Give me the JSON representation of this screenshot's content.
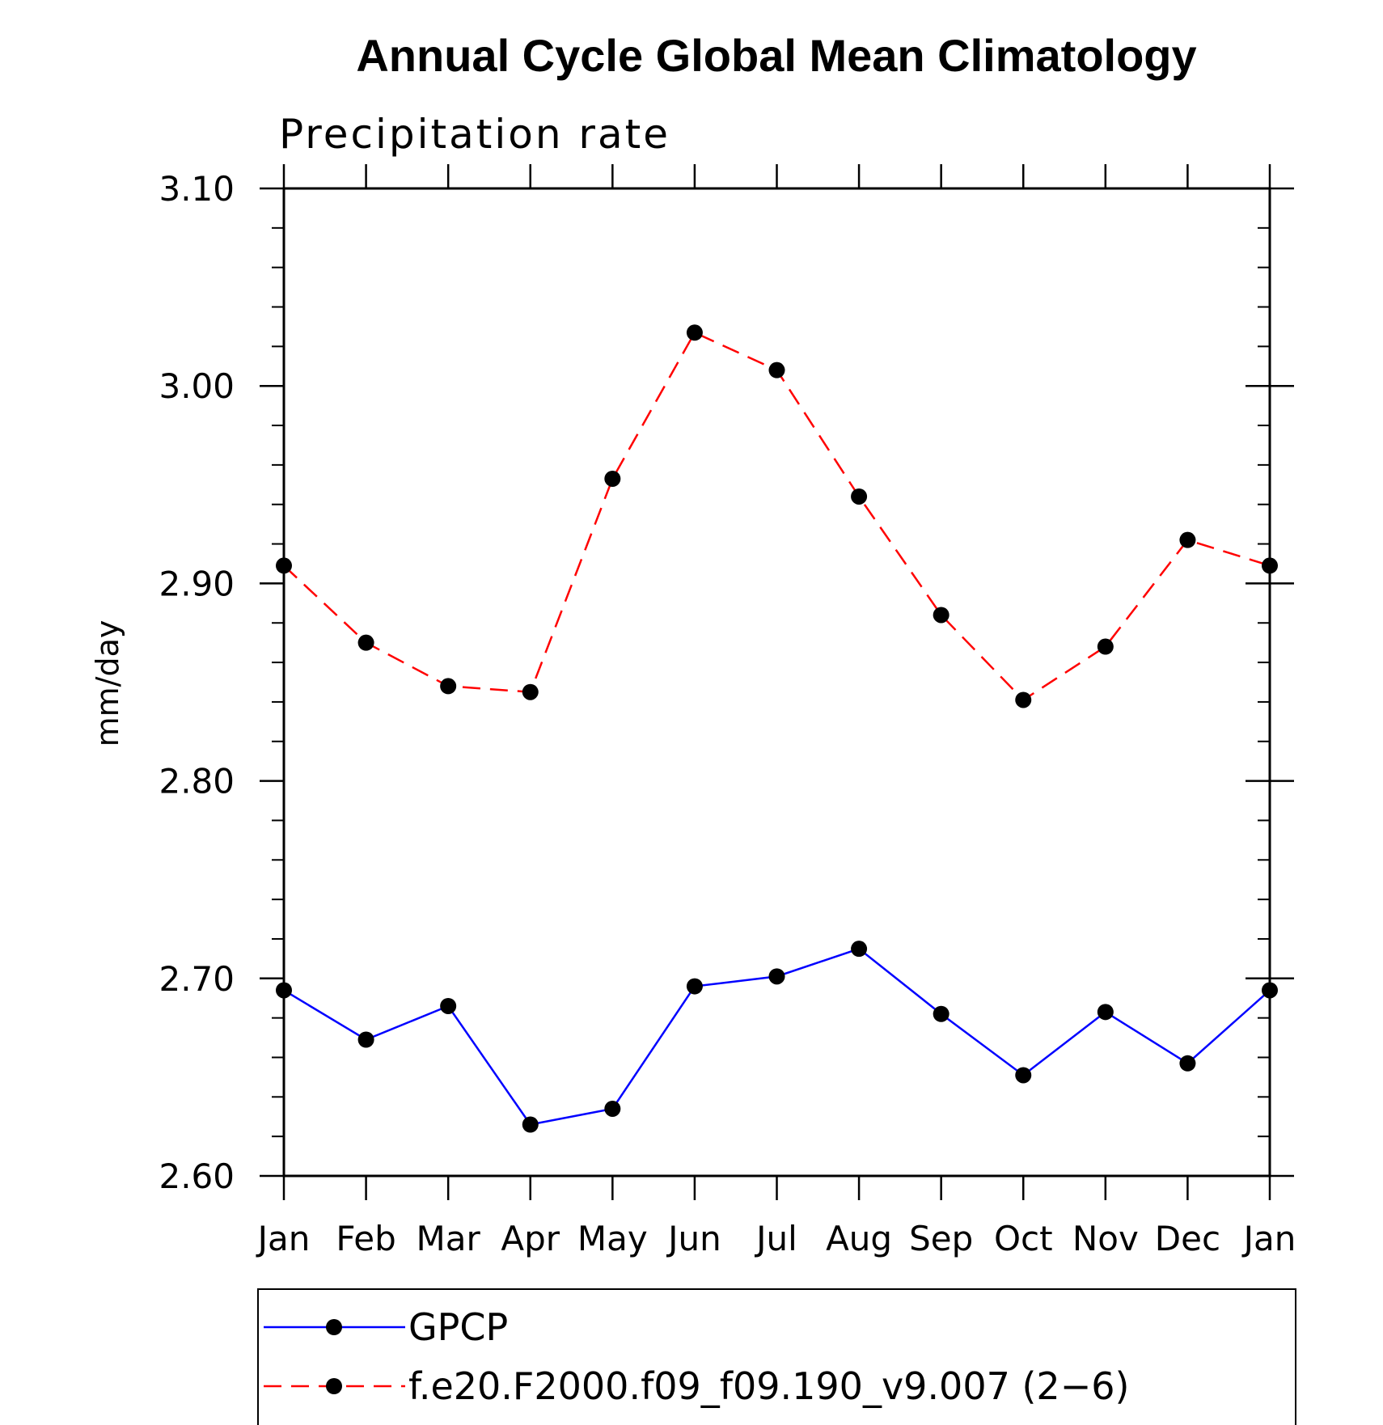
{
  "chart_data": {
    "type": "line",
    "title": "Annual Cycle Global Mean Climatology",
    "subtitle": "Precipitation rate",
    "xlabel": "",
    "ylabel": "mm/day",
    "categories": [
      "Jan",
      "Feb",
      "Mar",
      "Apr",
      "May",
      "Jun",
      "Jul",
      "Aug",
      "Sep",
      "Oct",
      "Nov",
      "Dec",
      "Jan"
    ],
    "ylim": [
      2.6,
      3.1
    ],
    "yticks": [
      "2.60",
      "2.70",
      "2.80",
      "2.90",
      "3.00",
      "3.10"
    ],
    "grid": false,
    "legend_position": "bottom",
    "series": [
      {
        "name": "GPCP",
        "color": "#0000ff",
        "line_style": "solid",
        "marker": "filled-circle",
        "values": [
          2.694,
          2.669,
          2.686,
          2.626,
          2.634,
          2.696,
          2.701,
          2.715,
          2.682,
          2.651,
          2.683,
          2.657,
          2.694
        ]
      },
      {
        "name": "f.e20.F2000.f09_f09.190_v9.007 (2−6)",
        "color": "#ff0000",
        "line_style": "dashed",
        "marker": "filled-circle",
        "values": [
          2.909,
          2.87,
          2.848,
          2.845,
          2.953,
          3.027,
          3.008,
          2.944,
          2.884,
          2.841,
          2.868,
          2.922,
          2.909
        ]
      }
    ]
  }
}
